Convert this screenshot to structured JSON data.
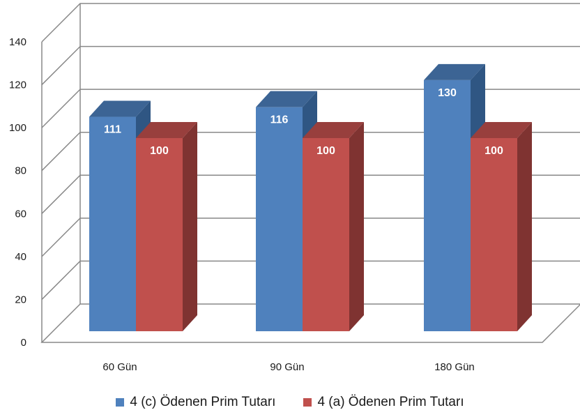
{
  "chart_data": {
    "type": "bar",
    "categories": [
      "60 Gün",
      "90 Gün",
      "180 Gün"
    ],
    "series": [
      {
        "name": "4 (c) Ödenen Prim Tutarı",
        "values": [
          111,
          116,
          130
        ],
        "color": "#4f81bd",
        "side_color": "#2f5683",
        "top_color": "#3c6494"
      },
      {
        "name": "4 (a) Ödenen Prim Tutarı",
        "values": [
          100,
          100,
          100
        ],
        "color": "#c0504d",
        "side_color": "#7f3331",
        "top_color": "#983f3d"
      }
    ],
    "ylim": [
      0,
      140
    ],
    "yticks": [
      "0",
      "20",
      "40",
      "60",
      "80",
      "100",
      "120",
      "140"
    ],
    "grid": true,
    "legend": "bottom",
    "title": "",
    "xlabel": "",
    "ylabel": ""
  }
}
